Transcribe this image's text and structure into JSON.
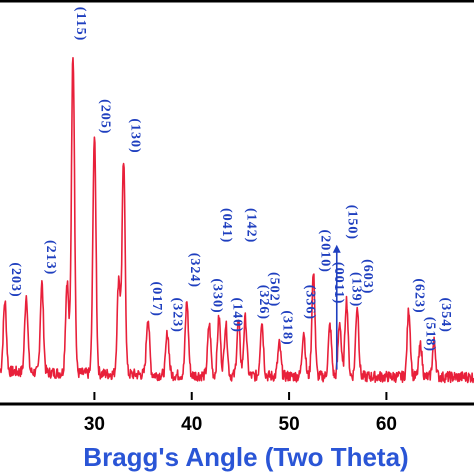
{
  "chart_data": {
    "type": "line",
    "title": "",
    "xlabel": "Bragg's Angle (Two Theta)",
    "ylabel": "",
    "xlim": [
      20.3,
      69
    ],
    "ylim": [
      0,
      1
    ],
    "grid": false,
    "x_ticks": [
      30,
      40,
      50,
      60
    ],
    "x_tick_labels": [
      "30",
      "40",
      "50",
      "60"
    ],
    "series_color": "#e8203a",
    "label_color": "#1f3fbf",
    "peaks": [
      {
        "x": 20.8,
        "y": 0.22
      },
      {
        "x": 23.0,
        "y": 0.24
      },
      {
        "x": 24.6,
        "y": 0.28
      },
      {
        "x": 27.2,
        "y": 0.29
      },
      {
        "x": 27.8,
        "y": 1.0
      },
      {
        "x": 30.0,
        "y": 0.74
      },
      {
        "x": 32.5,
        "y": 0.3
      },
      {
        "x": 33.0,
        "y": 0.66
      },
      {
        "x": 35.5,
        "y": 0.18
      },
      {
        "x": 37.5,
        "y": 0.13
      },
      {
        "x": 39.5,
        "y": 0.23
      },
      {
        "x": 41.8,
        "y": 0.16
      },
      {
        "x": 42.8,
        "y": 0.18
      },
      {
        "x": 43.5,
        "y": 0.16
      },
      {
        "x": 44.8,
        "y": 0.17
      },
      {
        "x": 45.5,
        "y": 0.18
      },
      {
        "x": 47.2,
        "y": 0.17
      },
      {
        "x": 49.0,
        "y": 0.1
      },
      {
        "x": 51.5,
        "y": 0.14
      },
      {
        "x": 52.5,
        "y": 0.32
      },
      {
        "x": 54.2,
        "y": 0.16
      },
      {
        "x": 55.2,
        "y": 0.17
      },
      {
        "x": 55.9,
        "y": 0.24
      },
      {
        "x": 57.0,
        "y": 0.22
      },
      {
        "x": 62.3,
        "y": 0.21
      },
      {
        "x": 63.5,
        "y": 0.1
      },
      {
        "x": 64.9,
        "y": 0.11
      }
    ],
    "peak_labels": [
      {
        "text": "(203)",
        "x": 21.0,
        "y": 0.35
      },
      {
        "text": "(213)",
        "x": 24.6,
        "y": 0.42
      },
      {
        "text": "(115)",
        "x": 27.7,
        "y": 1.15
      },
      {
        "text": "(205)",
        "x": 30.2,
        "y": 0.86
      },
      {
        "text": "(130)",
        "x": 33.3,
        "y": 0.8
      },
      {
        "text": "(017)",
        "x": 35.5,
        "y": 0.29
      },
      {
        "text": "(323)",
        "x": 37.6,
        "y": 0.24
      },
      {
        "text": "(324)",
        "x": 39.4,
        "y": 0.38
      },
      {
        "text": "(330)",
        "x": 41.7,
        "y": 0.3
      },
      {
        "text": "(041)",
        "x": 42.7,
        "y": 0.52
      },
      {
        "text": "(142)",
        "x": 45.2,
        "y": 0.52
      },
      {
        "text": "(140)",
        "x": 43.8,
        "y": 0.24
      },
      {
        "text": "(326)",
        "x": 46.5,
        "y": 0.28
      },
      {
        "text": "(502)",
        "x": 47.6,
        "y": 0.32
      },
      {
        "text": "(318)",
        "x": 48.9,
        "y": 0.2
      },
      {
        "text": "(336)",
        "x": 51.3,
        "y": 0.28
      },
      {
        "text": "(2010)",
        "x": 52.8,
        "y": 0.44
      },
      {
        "text": "(0011)",
        "x": 54.2,
        "y": 0.34
      },
      {
        "text": "(150)",
        "x": 55.6,
        "y": 0.53
      },
      {
        "text": "(139)",
        "x": 56.0,
        "y": 0.32
      },
      {
        "text": "(603)",
        "x": 57.2,
        "y": 0.36
      },
      {
        "text": "(623)",
        "x": 62.5,
        "y": 0.3
      },
      {
        "text": "(518)",
        "x": 63.6,
        "y": 0.18
      },
      {
        "text": "(354)",
        "x": 65.2,
        "y": 0.24
      }
    ]
  }
}
